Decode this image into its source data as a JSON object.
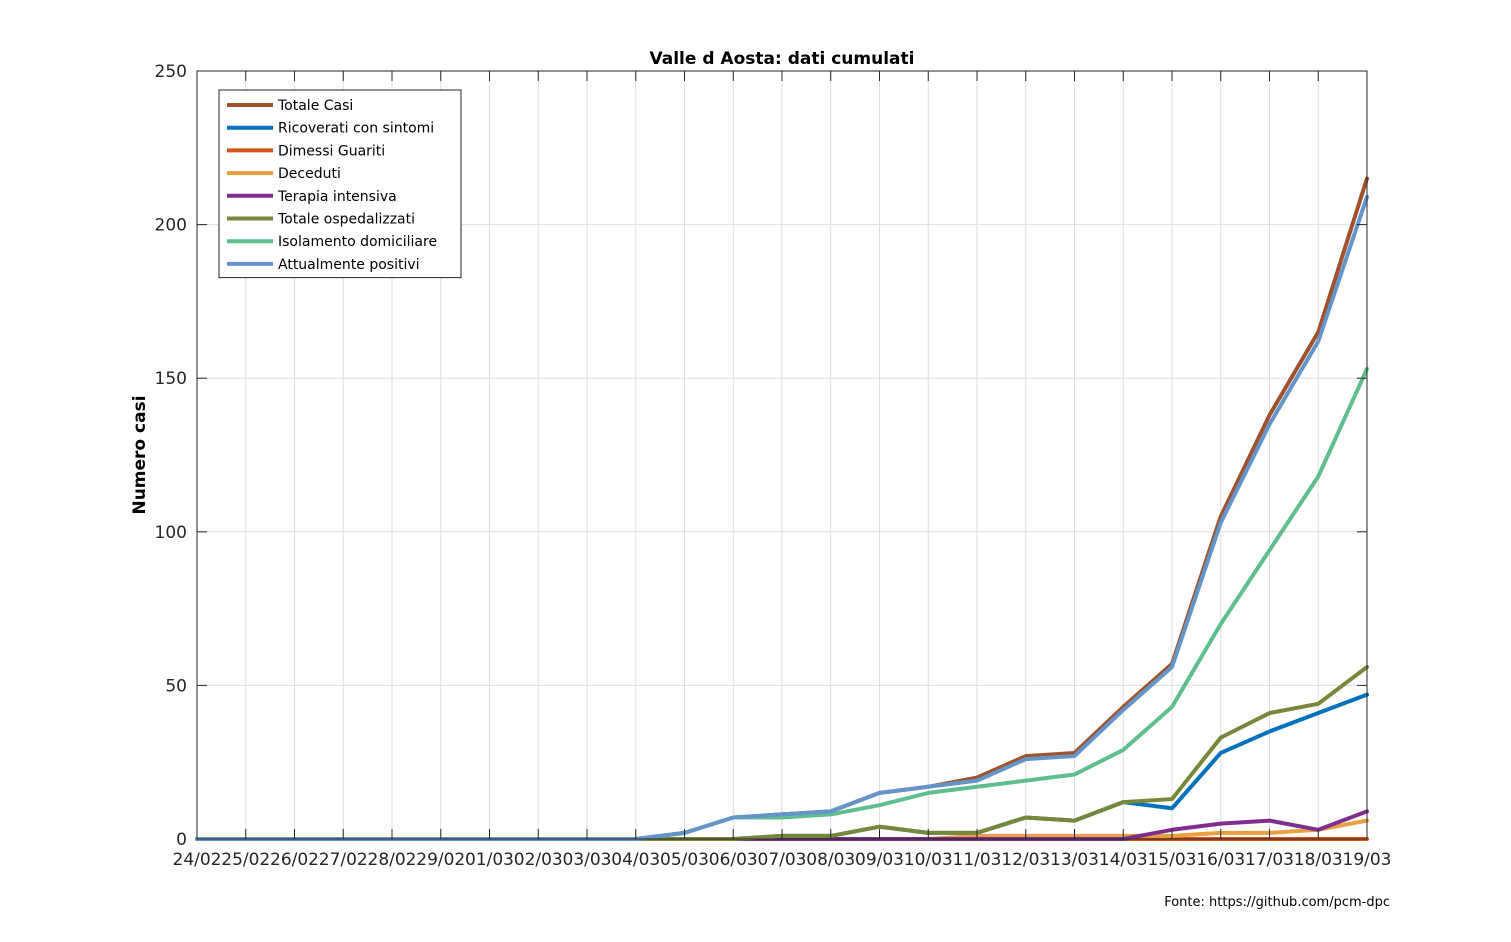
{
  "chart_data": {
    "type": "line",
    "title": "Valle d Aosta: dati cumulati",
    "xlabel": "",
    "ylabel": "Numero casi",
    "ylim": [
      0,
      250
    ],
    "yticks": [
      0,
      50,
      100,
      150,
      200,
      250
    ],
    "grid": true,
    "legend_position": "top-left",
    "source": "Fonte: https://github.com/pcm-dpc",
    "categories": [
      "24/02",
      "25/02",
      "26/02",
      "27/02",
      "28/02",
      "29/02",
      "01/03",
      "02/03",
      "03/03",
      "04/03",
      "05/03",
      "06/03",
      "07/03",
      "08/03",
      "09/03",
      "10/03",
      "11/03",
      "12/03",
      "13/03",
      "14/03",
      "15/03",
      "16/03",
      "17/03",
      "18/03",
      "19/03"
    ],
    "series": [
      {
        "name": "Totale Casi",
        "color": "#A0522D",
        "values": [
          0,
          0,
          0,
          0,
          0,
          0,
          0,
          0,
          0,
          0,
          2,
          7,
          8,
          9,
          15,
          17,
          20,
          27,
          28,
          43,
          57,
          105,
          138,
          165,
          215
        ]
      },
      {
        "name": "Ricoverati con sintomi",
        "color": "#0072BD",
        "values": [
          0,
          0,
          0,
          0,
          0,
          0,
          0,
          0,
          0,
          0,
          0,
          0,
          1,
          1,
          4,
          2,
          2,
          7,
          6,
          12,
          10,
          28,
          35,
          41,
          47
        ]
      },
      {
        "name": "Dimessi Guariti",
        "color": "#D95319",
        "values": [
          0,
          0,
          0,
          0,
          0,
          0,
          0,
          0,
          0,
          0,
          0,
          0,
          0,
          0,
          0,
          0,
          0,
          0,
          0,
          0,
          0,
          0,
          0,
          0,
          0
        ]
      },
      {
        "name": "Deceduti",
        "color": "#EDA131",
        "values": [
          0,
          0,
          0,
          0,
          0,
          0,
          0,
          0,
          0,
          0,
          0,
          0,
          0,
          0,
          0,
          0,
          1,
          1,
          1,
          1,
          1,
          2,
          2,
          3,
          6
        ]
      },
      {
        "name": "Terapia intensiva",
        "color": "#7E2F8E",
        "values": [
          0,
          0,
          0,
          0,
          0,
          0,
          0,
          0,
          0,
          0,
          0,
          0,
          0,
          0,
          0,
          0,
          0,
          0,
          0,
          0,
          3,
          5,
          6,
          3,
          9
        ]
      },
      {
        "name": "Totale ospedalizzati",
        "color": "#77AC30",
        "values": [
          0,
          0,
          0,
          0,
          0,
          0,
          0,
          0,
          0,
          0,
          0,
          0,
          1,
          1,
          4,
          2,
          2,
          7,
          6,
          12,
          13,
          33,
          41,
          44,
          56
        ]
      },
      {
        "name": "Isolamento domiciliare",
        "color": "#4DBEEE",
        "values": [
          0,
          0,
          0,
          0,
          0,
          0,
          0,
          0,
          0,
          0,
          2,
          7,
          7,
          8,
          11,
          15,
          17,
          19,
          21,
          29,
          43,
          70,
          94,
          118,
          153
        ]
      },
      {
        "name": "Attualmente positivi",
        "color": "#6495C8",
        "values": [
          0,
          0,
          0,
          0,
          0,
          0,
          0,
          0,
          0,
          0,
          2,
          7,
          8,
          9,
          15,
          17,
          19,
          26,
          27,
          42,
          56,
          103,
          135,
          162,
          209
        ]
      }
    ],
    "series_display_colors": [
      "#A0522D",
      "#0072BD",
      "#D95319",
      "#E8A040",
      "#7E2F8E",
      "#77883A",
      "#5FBE8E",
      "#6495C8"
    ]
  }
}
